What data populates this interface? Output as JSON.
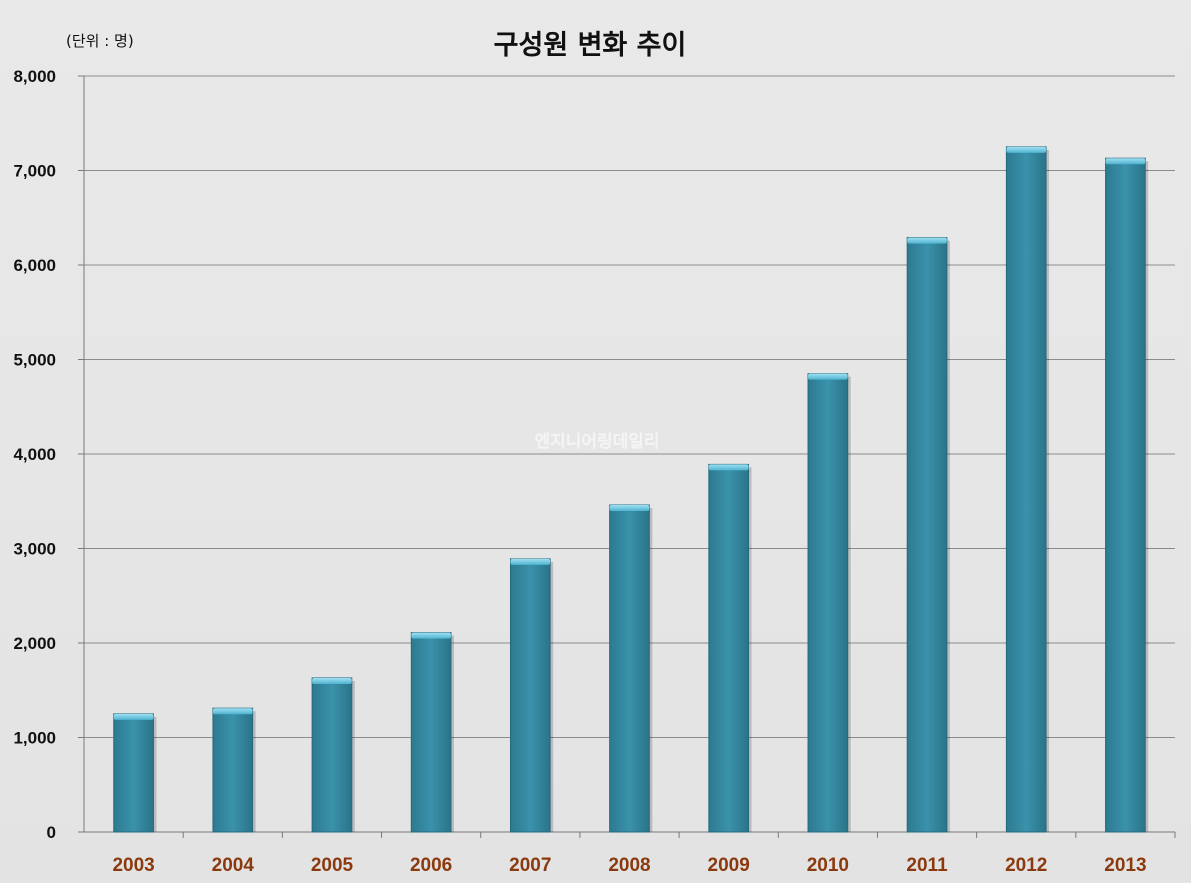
{
  "chart_data": {
    "type": "bar",
    "title": "구성원 변화 추이",
    "unit_note": "(단위 : 명)",
    "xlabel": "",
    "ylabel": "",
    "categories": [
      "2003",
      "2004",
      "2005",
      "2006",
      "2007",
      "2008",
      "2009",
      "2010",
      "2011",
      "2012",
      "2013"
    ],
    "values": [
      1250,
      1310,
      1630,
      2110,
      2890,
      3460,
      3890,
      4850,
      6290,
      7250,
      7130
    ],
    "ylim": [
      0,
      8000
    ],
    "yticks": [
      0,
      1000,
      2000,
      3000,
      4000,
      5000,
      6000,
      7000,
      8000
    ],
    "ytick_labels": [
      "0",
      "1,000",
      "2,000",
      "3,000",
      "4,000",
      "5,000",
      "6,000",
      "7,000",
      "8,000"
    ],
    "grid": true,
    "legend": "none",
    "watermark": "엔지니어링데일리",
    "colors": {
      "bar": "#378ea6",
      "bar_top": "#6cc4de",
      "grid": "#8c8c8c",
      "xtick_text": "#8b3a0f",
      "background": "#e6e6e6"
    }
  }
}
